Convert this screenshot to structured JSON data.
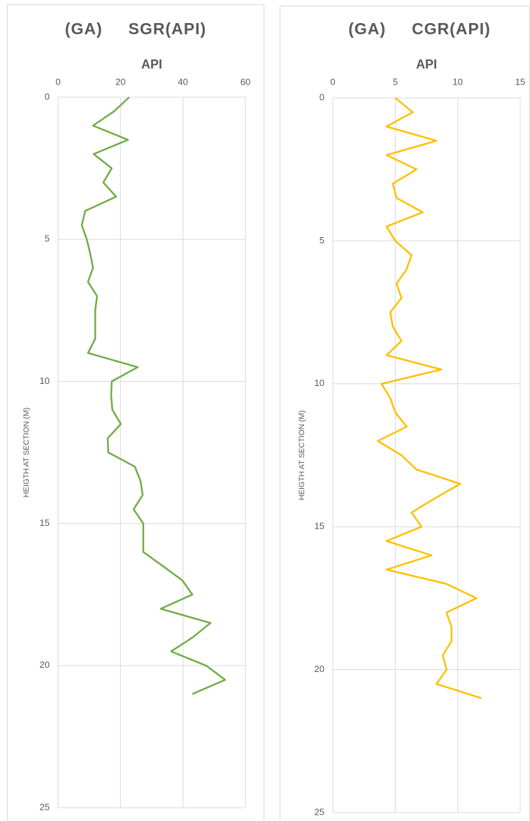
{
  "chart_data": [
    {
      "type": "line",
      "title": "(GA)     SGR(API)",
      "value_axis_title": "API",
      "depth_axis_title": "HEIGTH AT SECTION (M)",
      "x": [
        0,
        0.5,
        1,
        1.5,
        2,
        2.5,
        3,
        3.5,
        4,
        4.5,
        5,
        5.5,
        6,
        6.5,
        7,
        7.5,
        8,
        8.5,
        9,
        9.5,
        10,
        10.5,
        11,
        11.5,
        12,
        12.5,
        13,
        13.5,
        14,
        14.5,
        15,
        15.5,
        16,
        16.5,
        17,
        17.5,
        18,
        18.5,
        19,
        19.5,
        20,
        20.5,
        21
      ],
      "xlim": [
        0,
        25
      ],
      "xticks": [
        0,
        5,
        10,
        15,
        20,
        25
      ],
      "ylim": [
        0,
        60
      ],
      "yticks": [
        0,
        20,
        40,
        60
      ],
      "grid": true,
      "series": [
        {
          "color": "#70ad47",
          "values": [
            22.8,
            17.9,
            11.2,
            22.4,
            11.4,
            17.2,
            14.5,
            18.6,
            8.7,
            7.6,
            9.2,
            10.3,
            11.2,
            9.6,
            12.5,
            11.9,
            11.9,
            11.9,
            9.6,
            25.5,
            17.2,
            17,
            17.4,
            20.1,
            15.9,
            16.1,
            24.6,
            26.4,
            27.1,
            24.2,
            27.3,
            27.3,
            27.3,
            33.6,
            39.8,
            43,
            32.9,
            48.8,
            43.2,
            36.2,
            47.4,
            53.5,
            43
          ]
        }
      ]
    },
    {
      "type": "line",
      "title": "(GA)     CGR(API)",
      "value_axis_title": "API",
      "depth_axis_title": "HEIGTH AT SECTION (M)",
      "x": [
        0,
        0.5,
        1,
        1.5,
        2,
        2.5,
        3,
        3.5,
        4,
        4.5,
        5,
        5.5,
        6,
        6.5,
        7,
        7.5,
        8,
        8.5,
        9,
        9.5,
        10,
        10.5,
        11,
        11.5,
        12,
        12.5,
        13,
        13.5,
        14,
        14.5,
        15,
        15.5,
        16,
        16.5,
        17,
        17.5,
        18,
        18.5,
        19,
        19.5,
        20,
        20.5,
        21
      ],
      "xlim": [
        0,
        25
      ],
      "xticks": [
        0,
        5,
        10,
        15,
        20,
        25
      ],
      "ylim": [
        0,
        15
      ],
      "yticks": [
        0,
        5,
        10,
        15
      ],
      "grid": true,
      "series": [
        {
          "color": "#ffc000",
          "values": [
            5.0,
            6.4,
            4.3,
            8.3,
            4.3,
            6.7,
            4.8,
            5.1,
            7.2,
            4.3,
            5.0,
            6.3,
            5.9,
            5.1,
            5.5,
            4.6,
            4.8,
            5.5,
            4.3,
            8.7,
            3.9,
            4.6,
            5.0,
            5.9,
            3.6,
            5.5,
            6.7,
            10.2,
            8.2,
            6.3,
            7.1,
            4.3,
            7.9,
            4.3,
            9.1,
            11.5,
            9.1,
            9.5,
            9.5,
            8.8,
            9.1,
            8.3,
            11.9
          ]
        }
      ]
    }
  ]
}
